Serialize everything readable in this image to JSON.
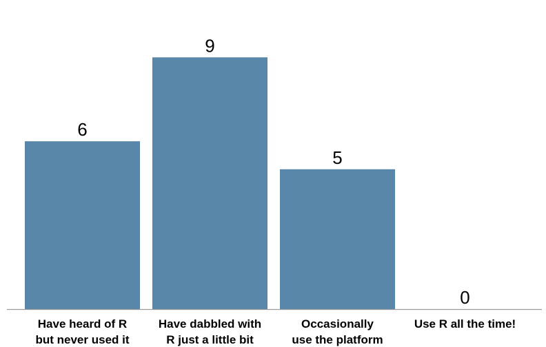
{
  "chart_data": {
    "type": "bar",
    "categories": [
      [
        "Have heard of R",
        "but never used it"
      ],
      [
        "Have dabbled with",
        "R just a little bit"
      ],
      [
        "Occasionally",
        "use the platform"
      ],
      [
        "Use R all the time!"
      ]
    ],
    "values": [
      6,
      9,
      5,
      0
    ],
    "data_labels": [
      "6",
      "9",
      "5",
      "0"
    ],
    "bar_color": "#5887a9",
    "baseline_color": "#9a9a9a",
    "ylim": [
      0,
      11
    ],
    "grid": false,
    "legend": false
  }
}
